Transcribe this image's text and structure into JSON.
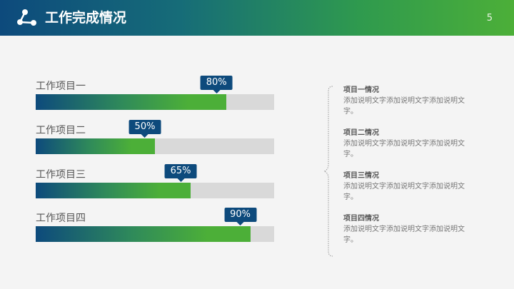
{
  "header": {
    "title": "工作完成情况",
    "page_number": "5",
    "icon": "share-nodes-icon",
    "colors": {
      "start": "#0d4a7c",
      "end": "#4caf38"
    }
  },
  "progress_items": [
    {
      "label": "工作项目一",
      "percent_text": "80%",
      "percent": 0.8
    },
    {
      "label": "工作项目二",
      "percent_text": "50%",
      "percent": 0.5
    },
    {
      "label": "工作项目三",
      "percent_text": "65%",
      "percent": 0.65
    },
    {
      "label": "工作项目四",
      "percent_text": "90%",
      "percent": 0.9
    }
  ],
  "descriptions": [
    {
      "title": "项目一情况",
      "text": "添加说明文字添加说明文字添加说明文字。"
    },
    {
      "title": "项目二情况",
      "text": "添加说明文字添加说明文字添加说明文字。"
    },
    {
      "title": "项目三情况",
      "text": "添加说明文字添加说明文字添加说明文字。"
    },
    {
      "title": "项目四情况",
      "text": "添加说明文字添加说明文字添加说明文字。"
    }
  ],
  "colors": {
    "bar_start": "#0d4a7c",
    "bar_end": "#4caf38",
    "track": "#d9d9d9",
    "badge": "#0d4a7c"
  }
}
